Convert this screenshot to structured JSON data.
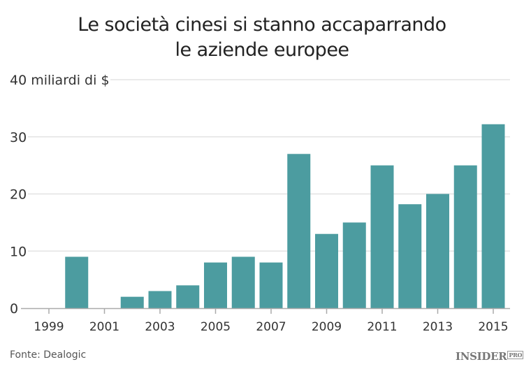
{
  "chart_data": {
    "type": "bar",
    "title_lines": [
      "Le società cinesi si stanno accaparrando",
      "le aziende europee"
    ],
    "ylabel": "miliardi di $",
    "ylim": [
      0,
      40
    ],
    "yticks": [
      0,
      10,
      20,
      30,
      40
    ],
    "top_tick_label": "40 miliardi di $",
    "xlim": [
      1999,
      2015
    ],
    "xticks": [
      "1999",
      "2001",
      "2003",
      "2005",
      "2007",
      "2009",
      "2011",
      "2013",
      "2015"
    ],
    "categories": [
      2000,
      2002,
      2003,
      2004,
      2005,
      2006,
      2007,
      2008,
      2009,
      2010,
      2011,
      2012,
      2013,
      2014,
      2015
    ],
    "values": [
      9,
      2,
      3,
      4,
      8,
      9,
      8,
      27,
      13,
      15,
      25,
      18.2,
      20,
      25,
      32.2
    ],
    "bar_color": "#4c9ca0",
    "grid": true,
    "legend": "none"
  },
  "footer": {
    "source": "Fonte: Dealogic",
    "logo": "INSIDER",
    "logo_suffix": "PRO"
  }
}
